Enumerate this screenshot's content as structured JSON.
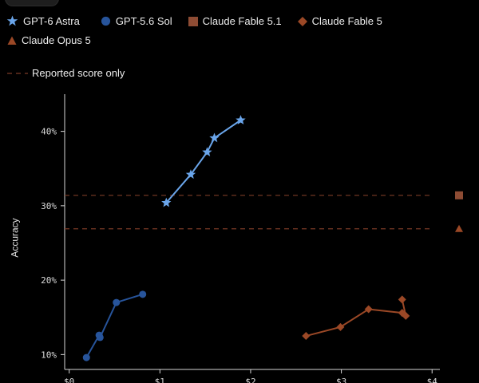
{
  "colors": {
    "gpt6_astra": "#6aa5ea",
    "gpt56_sol": "#27549b",
    "claude_fable": "#9b4826",
    "claude_fable_51": "#8e4c34",
    "claude_opus5": "#9b4826",
    "reported_line": "#7b3a26",
    "axis": "#d6d6d6",
    "tick_text": "#dcdcdc"
  },
  "legend": {
    "items": [
      {
        "label": "GPT-6 Astra",
        "icon": "star-icon"
      },
      {
        "label": "GPT-5.6 Sol",
        "icon": "circle-icon"
      },
      {
        "label": "Claude Fable 5.1",
        "icon": "square-icon"
      },
      {
        "label": "Claude Fable 5",
        "icon": "diamond-icon"
      },
      {
        "label": "Claude Opus 5",
        "icon": "triangle-icon"
      }
    ],
    "reported_label": "Reported score only"
  },
  "chart_data": {
    "type": "line",
    "ylabel": "Accuracy",
    "xlabel": "",
    "ylim": [
      8,
      45
    ],
    "y_ticks": [
      10,
      20,
      30,
      40
    ],
    "y_tick_labels": [
      "10%",
      "20%",
      "30%",
      "40%"
    ],
    "x_tick_labels": [
      "$0",
      "$1",
      "$2",
      "$3",
      "$4"
    ],
    "x_ticks": [
      0,
      1,
      2,
      3,
      4
    ],
    "xlim": [
      -0.05,
      4.35
    ],
    "grid": false,
    "legend_position": "top",
    "series": [
      {
        "name": "GPT-6 Astra",
        "marker": "star",
        "x": [
          1.07,
          1.34,
          1.52,
          1.6,
          1.89
        ],
        "y": [
          30.4,
          34.2,
          37.2,
          39.1,
          41.5
        ]
      },
      {
        "name": "GPT-5.6 Sol",
        "marker": "circle",
        "x": [
          0.19,
          0.33,
          0.34,
          0.52,
          0.81
        ],
        "y": [
          9.6,
          12.6,
          12.3,
          17.0,
          18.1
        ]
      },
      {
        "name": "Claude Fable 5",
        "marker": "diamond",
        "x": [
          2.61,
          2.99,
          3.3,
          3.67,
          3.71,
          3.67
        ],
        "y": [
          12.5,
          13.7,
          16.1,
          15.6,
          15.2,
          17.4
        ]
      }
    ],
    "reported": [
      {
        "name": "Claude Fable 5.1",
        "marker": "square",
        "y": 31.4
      },
      {
        "name": "Claude Opus 5",
        "marker": "triangle",
        "y": 26.9
      }
    ]
  }
}
